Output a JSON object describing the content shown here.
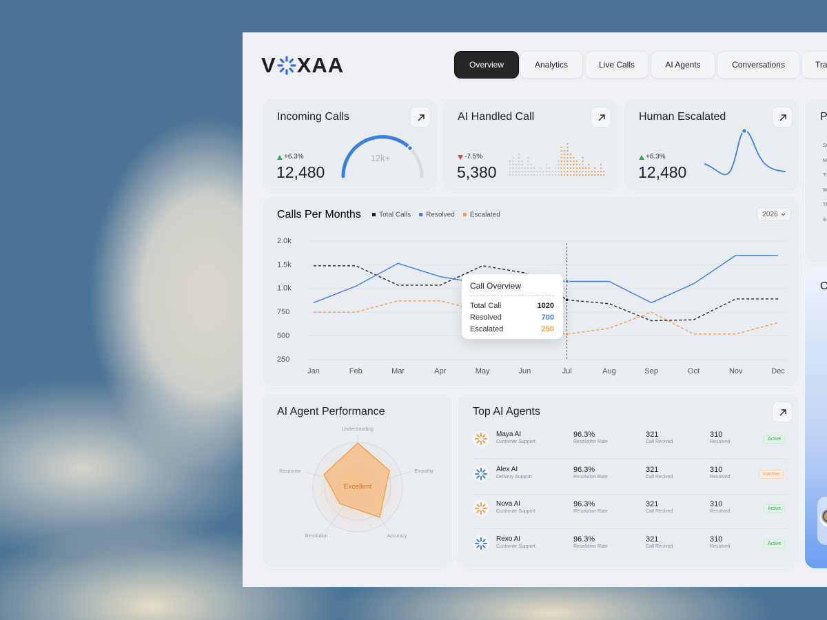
{
  "nav": {
    "logo": [
      "V",
      "XAA"
    ],
    "tabs": [
      "Overview",
      "Analytics",
      "Live Calls",
      "AI Agents",
      "Conversations",
      "Tra"
    ]
  },
  "stats": [
    {
      "title": "Incoming Calls",
      "change": "+6.3%",
      "value": "12,480",
      "gauge_label": "12k+"
    },
    {
      "title": "AI Handled Call",
      "change": "-7.5%",
      "value": "5,380"
    },
    {
      "title": "Human Escalated",
      "change": "+6.3%",
      "value": "12,480"
    }
  ],
  "side_card": {
    "title": "Pe",
    "days": [
      "Su",
      "Mo",
      "Tu",
      "We",
      "Th",
      "S"
    ]
  },
  "side_card_2": {
    "title": "O"
  },
  "calls_chart": {
    "type": "line",
    "title": "Calls Per Months",
    "year": "2026",
    "categories": [
      "Jan",
      "Feb",
      "Mar",
      "Apr",
      "May",
      "Jun",
      "Jul",
      "Aug",
      "Sep",
      "Oct",
      "Nov",
      "Dec"
    ],
    "series": [
      {
        "name": "Total Calls",
        "color": "#222222",
        "dashed": true,
        "values": [
          1480,
          1480,
          1070,
          1070,
          1480,
          1330,
          880,
          840,
          660,
          670,
          890,
          890
        ]
      },
      {
        "name": "Resolved",
        "color": "#3d7fe0",
        "dashed": false,
        "values": [
          850,
          1050,
          1530,
          1250,
          1100,
          1200,
          1150,
          1150,
          850,
          1100,
          1700,
          1700
        ]
      },
      {
        "name": "Escalated",
        "color": "#f0a050",
        "dashed": true,
        "values": [
          750,
          750,
          870,
          870,
          760,
          580,
          520,
          580,
          750,
          520,
          520,
          640
        ]
      }
    ],
    "ylim": [
      250,
      2000
    ],
    "yticks": [
      {
        "value": 2000,
        "label": "2.0k"
      },
      {
        "value": 1500,
        "label": "1.5k"
      },
      {
        "value": 1000,
        "label": "1.0k"
      },
      750,
      500,
      250
    ],
    "grid": true,
    "tooltip": {
      "title": "Call Overview",
      "rows": [
        {
          "label": "Total Call",
          "value": 1020
        },
        {
          "label": "Resolved",
          "value": 700
        },
        {
          "label": "Escalated",
          "value": 250
        }
      ]
    }
  },
  "performance": {
    "title": "AI Agent Performance",
    "axes": [
      "Understanding",
      "Empathy",
      "Accuracy",
      "Resolution",
      "Response"
    ],
    "rating": "Excellent"
  },
  "agents": {
    "title": "Top AI Agents",
    "rows": [
      {
        "name": "Maya AI",
        "role": "Customer Support",
        "rate": "96.3%",
        "rate_label": "Resolution Rate",
        "calls": "321",
        "calls_label": "Call Recived",
        "resolved": "310",
        "resolved_label": "Resolved",
        "status": "Active"
      },
      {
        "name": "Alex AI",
        "role": "Delivery Support",
        "rate": "96.3%",
        "rate_label": "Resolution Rate",
        "calls": "321",
        "calls_label": "Call Recived",
        "resolved": "310",
        "resolved_label": "Resolved",
        "status": "Inactive"
      },
      {
        "name": "Nova AI",
        "role": "Customer Support",
        "rate": "96.3%",
        "rate_label": "Resolution Rate",
        "calls": "321",
        "calls_label": "Call Recived",
        "resolved": "310",
        "resolved_label": "Resolved",
        "status": "Active"
      },
      {
        "name": "Rexo AI",
        "role": "Customer Support",
        "rate": "96.3%",
        "rate_label": "Resolution Rate",
        "calls": "321",
        "calls_label": "Call Recived",
        "resolved": "310",
        "resolved_label": "Resolved",
        "status": "Active"
      }
    ]
  }
}
